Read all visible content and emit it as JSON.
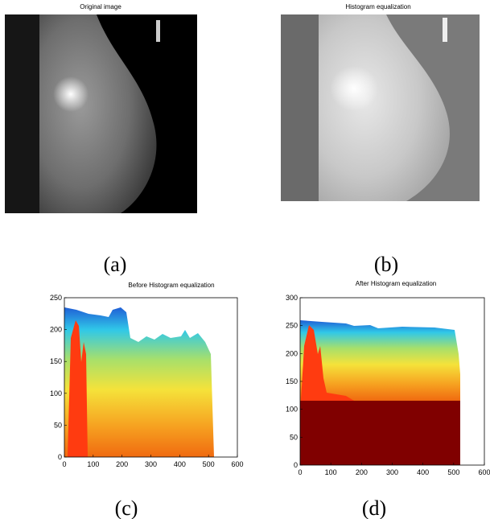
{
  "images": [
    {
      "title": "Original image",
      "label": "(a)"
    },
    {
      "title": "Histogram equalization",
      "label": "(b)"
    }
  ],
  "chart_data": [
    {
      "type": "area",
      "title": "Before Histogram equalization",
      "label": "(c)",
      "xlim": [
        0,
        600
      ],
      "ylim": [
        0,
        250
      ],
      "xticks": [
        0,
        100,
        200,
        300,
        400,
        500,
        600
      ],
      "yticks": [
        0,
        50,
        100,
        150,
        200,
        250
      ]
    },
    {
      "type": "area",
      "title": "After Histogram equalization",
      "label": "(d)",
      "xlim": [
        0,
        600
      ],
      "ylim": [
        0,
        300
      ],
      "xticks": [
        0,
        100,
        200,
        300,
        400,
        500,
        600
      ],
      "yticks": [
        0,
        50,
        100,
        150,
        200,
        250,
        300
      ]
    }
  ]
}
